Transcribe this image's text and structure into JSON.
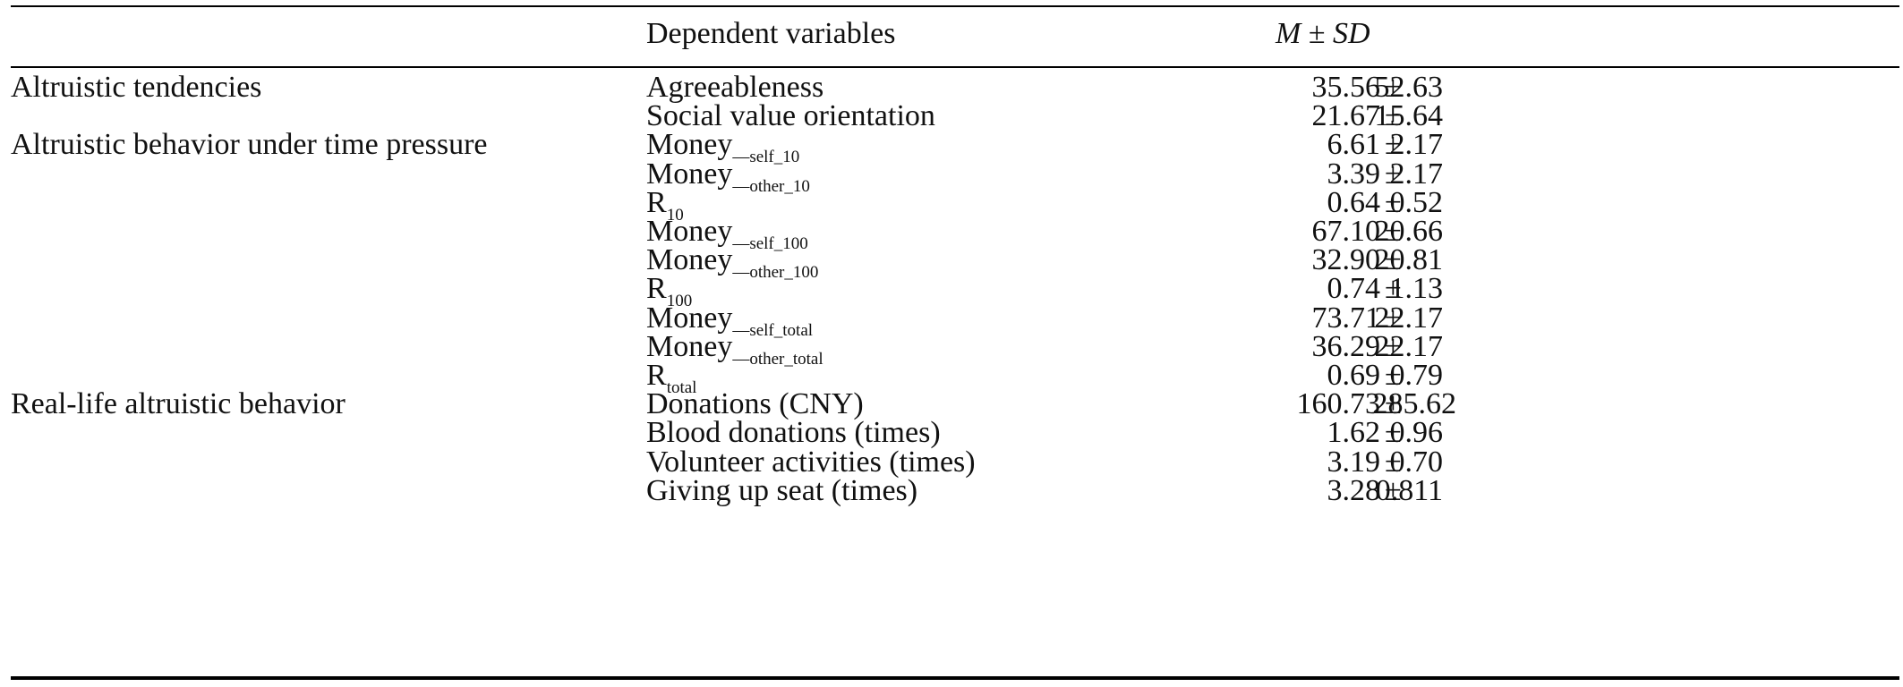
{
  "header": {
    "col_group": "",
    "col_dependent": "Dependent variables",
    "col_msd_m": "M",
    "col_msd_pm": "±",
    "col_msd_sd": "SD"
  },
  "rows": [
    {
      "group": "Altruistic tendencies",
      "var": "Agreeableness",
      "sub": "",
      "mean": "35.56",
      "pm": "±",
      "sd": "52.63"
    },
    {
      "group": "",
      "var": "Social value orientation",
      "sub": "",
      "mean": "21.67",
      "pm": "±",
      "sd": "15.64"
    },
    {
      "group": "Altruistic behavior under time pressure",
      "var": "Money",
      "sub": "—self_10",
      "mean": "6.61",
      "pm": "±",
      "sd": "2.17"
    },
    {
      "group": "",
      "var": "Money",
      "sub": "—other_10",
      "mean": "3.39",
      "pm": "±",
      "sd": "2.17"
    },
    {
      "group": "",
      "var": "R",
      "sub": "10",
      "mean": "0.64",
      "pm": "±",
      "sd": "0.52"
    },
    {
      "group": "",
      "var": "Money",
      "sub": "—self_100",
      "mean": "67.10",
      "pm": "±",
      "sd": "20.66"
    },
    {
      "group": "",
      "var": "Money",
      "sub": "—other_100",
      "mean": "32.90",
      "pm": "±",
      "sd": "20.81"
    },
    {
      "group": "",
      "var": "R",
      "sub": "100",
      "mean": "0.74",
      "pm": "±",
      "sd": "1.13"
    },
    {
      "group": "",
      "var": "Money",
      "sub": "—self_total",
      "mean": "73.71",
      "pm": "±",
      "sd": "22.17"
    },
    {
      "group": "",
      "var": "Money",
      "sub": "—other_total",
      "mean": "36.29",
      "pm": "±",
      "sd": "22.17"
    },
    {
      "group": "",
      "var": "R",
      "sub": "total",
      "mean": "0.69",
      "pm": "±",
      "sd": "0.79"
    },
    {
      "group": "Real-life altruistic behavior",
      "var": "Donations (CNY)",
      "sub": "",
      "mean": "160.73",
      "pm": "±",
      "sd": "285.62"
    },
    {
      "group": "",
      "var": "Blood donations (times)",
      "sub": "",
      "mean": "1.62",
      "pm": "±",
      "sd": "0.96"
    },
    {
      "group": "",
      "var": "Volunteer activities (times)",
      "sub": "",
      "mean": "3.19",
      "pm": "±",
      "sd": "0.70"
    },
    {
      "group": "",
      "var": "Giving up seat (times)",
      "sub": "",
      "mean": "3.28",
      "pm": "±",
      "sd": "0.811"
    }
  ]
}
